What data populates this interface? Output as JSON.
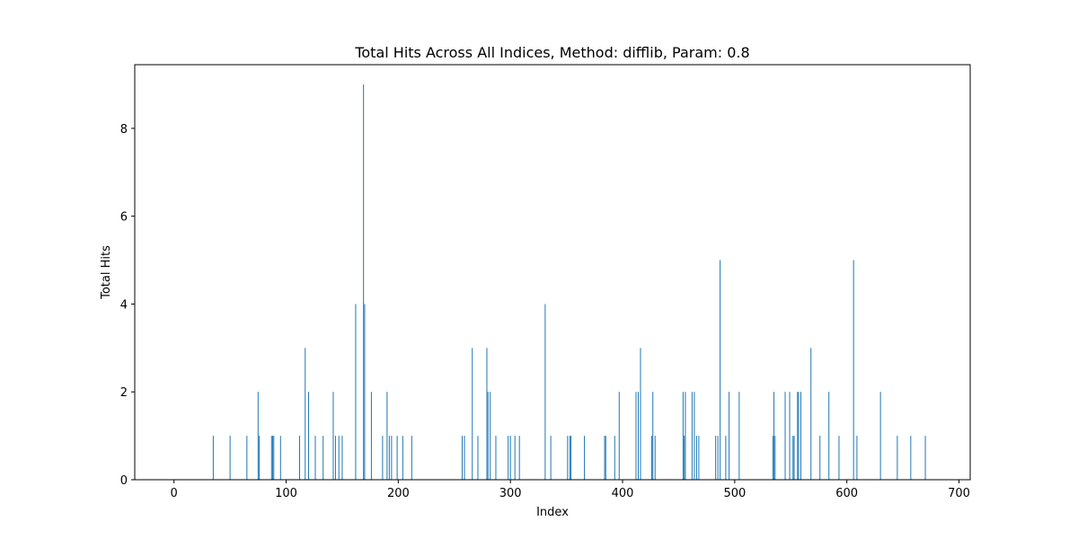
{
  "chart_data": {
    "type": "bar",
    "title": "Total Hits Across All Indices, Method: difflib, Param: 0.8",
    "xlabel": "Index",
    "ylabel": "Total Hits",
    "xlim": [
      -35,
      710
    ],
    "ylim": [
      0,
      9.45
    ],
    "xticks": [
      0,
      100,
      200,
      300,
      400,
      500,
      600,
      700
    ],
    "yticks": [
      0,
      2,
      4,
      6,
      8
    ],
    "grid": false,
    "bar_color": "#1f77b4",
    "x": [
      35,
      50,
      65,
      75,
      76,
      87,
      88,
      89,
      95,
      112,
      117,
      120,
      126,
      133,
      142,
      144,
      147,
      150,
      162,
      169,
      170,
      176,
      186,
      190,
      192,
      194,
      199,
      204,
      212,
      257,
      259,
      266,
      271,
      279,
      280,
      282,
      287,
      298,
      300,
      304,
      308,
      331,
      336,
      351,
      353,
      354,
      366,
      384,
      385,
      393,
      397,
      412,
      414,
      416,
      426,
      427,
      429,
      454,
      455,
      456,
      462,
      464,
      466,
      468,
      483,
      485,
      487,
      492,
      495,
      504,
      534,
      535,
      536,
      545,
      549,
      552,
      553,
      556,
      557,
      559,
      568,
      576,
      584,
      593,
      606,
      609,
      630,
      645,
      657,
      670
    ],
    "values": [
      1,
      1,
      1,
      2,
      1,
      1,
      1,
      1,
      1,
      1,
      3,
      2,
      1,
      1,
      2,
      1,
      1,
      1,
      4,
      9,
      4,
      2,
      1,
      2,
      1,
      1,
      1,
      1,
      1,
      1,
      1,
      3,
      1,
      3,
      2,
      2,
      1,
      1,
      1,
      1,
      1,
      4,
      1,
      1,
      1,
      1,
      1,
      1,
      1,
      1,
      2,
      2,
      2,
      3,
      1,
      2,
      1,
      2,
      1,
      2,
      2,
      2,
      1,
      1,
      1,
      1,
      5,
      1,
      2,
      2,
      1,
      2,
      1,
      2,
      2,
      1,
      1,
      2,
      2,
      2,
      3,
      1,
      2,
      1,
      5,
      1,
      2,
      1,
      1,
      1
    ]
  }
}
